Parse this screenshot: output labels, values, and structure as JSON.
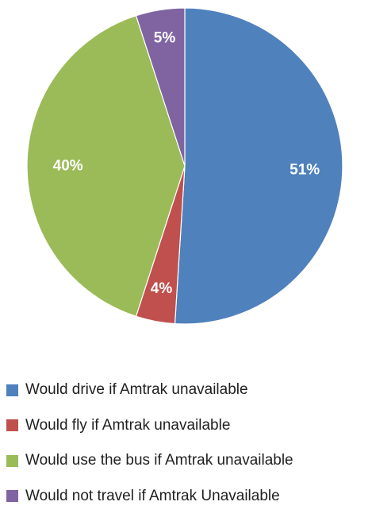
{
  "chart_data": {
    "type": "pie",
    "title": "",
    "legend_position": "bottom",
    "slices": [
      {
        "label": "Would drive if Amtrak unavailable",
        "value": 51,
        "display": "51%",
        "color": "#4f81bd"
      },
      {
        "label": "Would fly if Amtrak unavailable",
        "value": 4,
        "display": "4%",
        "color": "#c0504d"
      },
      {
        "label": "Would use the bus if Amtrak unavailable",
        "value": 40,
        "display": "40%",
        "color": "#9bbb59"
      },
      {
        "label": "Would not travel if Amtrak Unavailable",
        "value": 5,
        "display": "5%",
        "color": "#8064a2"
      }
    ]
  }
}
